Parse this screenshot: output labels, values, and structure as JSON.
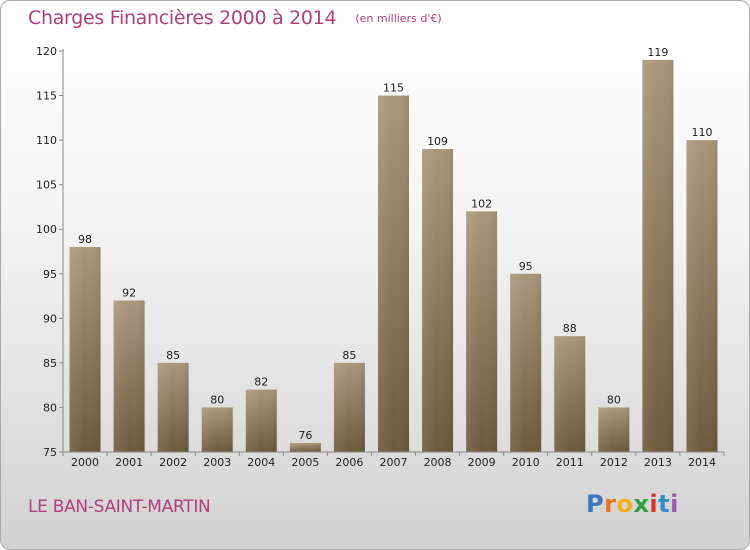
{
  "title": "Charges Financières 2000 à 2014",
  "unit": "(en milliers d'€)",
  "location": "LE BAN-SAINT-MARTIN",
  "logo": {
    "text": "Proxiti",
    "letters": [
      {
        "ch": "P",
        "color": "#3b78c4"
      },
      {
        "ch": "r",
        "color": "#e8731e"
      },
      {
        "ch": "o",
        "color": "#f2b01c"
      },
      {
        "ch": "x",
        "color": "#2d9e3a"
      },
      {
        "ch": "i",
        "color": "#d9342b"
      },
      {
        "ch": "t",
        "color": "#2f8fd0"
      },
      {
        "ch": "i",
        "color": "#9b58b5"
      }
    ]
  },
  "colors": {
    "title": "#b0407a",
    "bar_top": "#a8977a",
    "bar_bottom": "#6d5a3c"
  },
  "chart_data": {
    "type": "bar",
    "categories": [
      "2000",
      "2001",
      "2002",
      "2003",
      "2004",
      "2005",
      "2006",
      "2007",
      "2008",
      "2009",
      "2010",
      "2011",
      "2012",
      "2013",
      "2014"
    ],
    "values": [
      98,
      92,
      85,
      80,
      82,
      76,
      85,
      115,
      109,
      102,
      95,
      88,
      80,
      119,
      110
    ],
    "ylim": [
      75,
      120
    ],
    "yticks": [
      75,
      80,
      85,
      90,
      95,
      100,
      105,
      110,
      115,
      120
    ],
    "grid": false
  }
}
